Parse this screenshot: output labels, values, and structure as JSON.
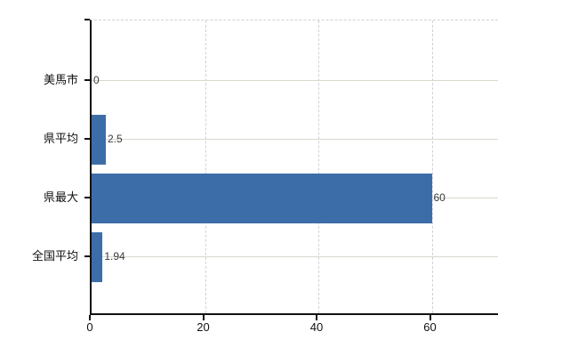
{
  "chart_data": {
    "type": "bar",
    "orientation": "horizontal",
    "title": "",
    "xlabel": "",
    "ylabel": "",
    "categories": [
      "美馬市",
      "県平均",
      "県最大",
      "全国平均"
    ],
    "values": [
      0,
      2.5,
      60,
      1.94
    ],
    "value_labels": [
      "0",
      "2.5",
      "60",
      "1.94"
    ],
    "x_ticks": [
      0,
      20,
      40,
      60
    ],
    "x_tick_labels": [
      "0",
      "20",
      "40",
      "60"
    ],
    "xlim": [
      0,
      72
    ],
    "legend": "none",
    "grid": {
      "vertical": "dashed-light",
      "horizontal": "solid-light"
    },
    "colors": {
      "bar": "#3d6da8",
      "axis": "#111111",
      "horizontal_grid": "#d4dbce",
      "vertical_grid": "#d2cfd9",
      "value_label": "#3a3a3a",
      "background": "#ffffff"
    }
  }
}
